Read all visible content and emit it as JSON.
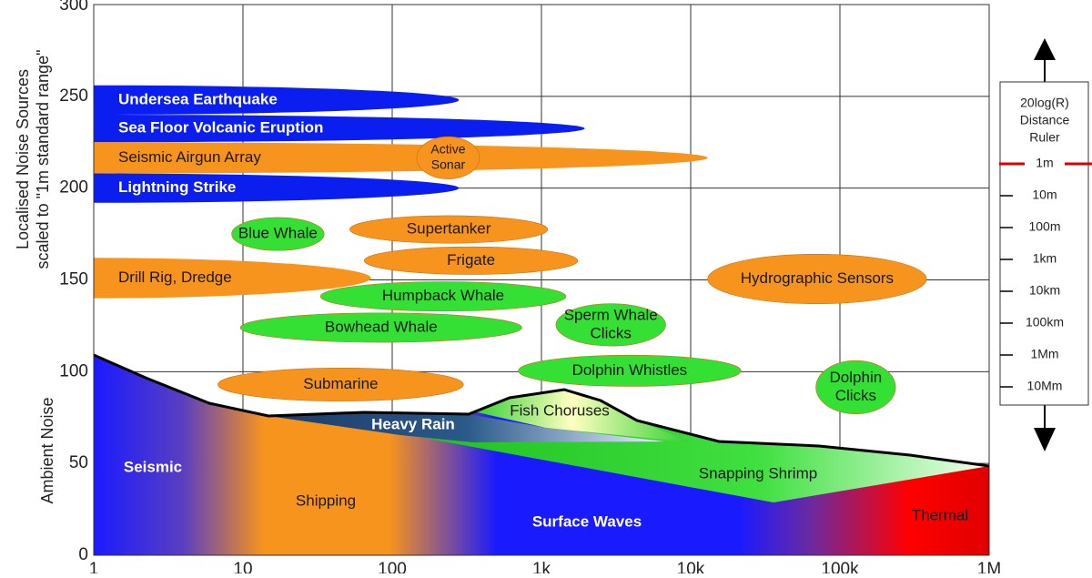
{
  "chart_data": {
    "type": "noise-map",
    "y_label_top": [
      "Localised Noise Sources",
      "scaled to \"1m standard range\""
    ],
    "y_label_bottom": "Ambient Noise",
    "xscale": "log",
    "xlim": [
      1,
      1000000
    ],
    "xticks": [
      1,
      10,
      100,
      {
        "value": 1000,
        "label": "1k"
      },
      {
        "value": 10000,
        "label": "10k"
      },
      {
        "value": 100000,
        "label": "100k"
      },
      {
        "value": 1000000,
        "label": "1M"
      }
    ],
    "ylim": [
      0,
      300
    ],
    "yticks": [
      0,
      50,
      100,
      150,
      200,
      250,
      300
    ],
    "grid": true,
    "sources": [
      {
        "lines": [
          "Undersea Earthquake"
        ],
        "color": "#0a1ef0",
        "label_color": "#ffffff",
        "x": [
          1,
          280
        ],
        "y": [
          240,
          256
        ]
      },
      {
        "lines": [
          "Sea Floor Volcanic Eruption"
        ],
        "color": "#0a1ef0",
        "label_color": "#ffffff",
        "x": [
          1,
          1950
        ],
        "y": [
          225,
          240
        ]
      },
      {
        "lines": [
          "Seismic Airgun Array"
        ],
        "color": "#f7941d",
        "label_color": "#1a1a1a",
        "x": [
          1,
          13000
        ],
        "y": [
          208,
          225
        ]
      },
      {
        "lines": [
          "Lightning Strike"
        ],
        "color": "#0a1ef0",
        "label_color": "#ffffff",
        "x": [
          1,
          280
        ],
        "y": [
          192,
          208
        ]
      },
      {
        "lines": [
          "Active",
          "Sonar"
        ],
        "color": "#f7941d",
        "label_color": "#1a1a1a",
        "x": [
          146,
          385
        ],
        "y": [
          205,
          228
        ]
      },
      {
        "lines": [
          "Blue Whale"
        ],
        "color": "#33e033",
        "label_color": "#1a1a1a",
        "x": [
          8.4,
          35
        ],
        "y": [
          166,
          184
        ]
      },
      {
        "lines": [
          "Supertanker"
        ],
        "color": "#f7941d",
        "label_color": "#1a1a1a",
        "x": [
          52,
          1100
        ],
        "y": [
          170,
          185
        ]
      },
      {
        "lines": [
          "Frigate"
        ],
        "color": "#f7941d",
        "label_color": "#1a1a1a",
        "x": [
          65,
          1750
        ],
        "y": [
          153,
          168
        ]
      },
      {
        "lines": [
          "Drill Rig, Dredge"
        ],
        "color": "#f7941d",
        "label_color": "#1a1a1a",
        "x": [
          1,
          72
        ],
        "y": [
          140,
          162
        ]
      },
      {
        "lines": [
          "Hydrographic Sensors"
        ],
        "color": "#f7941d",
        "label_color": "#1a1a1a",
        "x": [
          13000,
          380000
        ],
        "y": [
          137,
          164
        ]
      },
      {
        "lines": [
          "Humpback Whale"
        ],
        "color": "#33e033",
        "label_color": "#1a1a1a",
        "x": [
          33,
          1460
        ],
        "y": [
          133,
          149
        ]
      },
      {
        "lines": [
          "Sperm Whale",
          "Clicks"
        ],
        "color": "#33e033",
        "label_color": "#1a1a1a",
        "x": [
          1250,
          6800
        ],
        "y": [
          114,
          137
        ]
      },
      {
        "lines": [
          "Bowhead Whale"
        ],
        "color": "#33e033",
        "label_color": "#1a1a1a",
        "x": [
          9.6,
          740
        ],
        "y": [
          116,
          132
        ]
      },
      {
        "lines": [
          "Dolphin Whistles"
        ],
        "color": "#33e033",
        "label_color": "#1a1a1a",
        "x": [
          700,
          21700
        ],
        "y": [
          92,
          109
        ]
      },
      {
        "lines": [
          "Submarine"
        ],
        "color": "#f7941d",
        "label_color": "#1a1a1a",
        "x": [
          6.8,
          300
        ],
        "y": [
          84,
          102
        ]
      },
      {
        "lines": [
          "Dolphin",
          "Clicks"
        ],
        "color": "#33e033",
        "label_color": "#1a1a1a",
        "x": [
          69000,
          236000
        ],
        "y": [
          77,
          106
        ]
      }
    ],
    "ambient_labels": [
      "Seismic",
      "Shipping",
      "Surface Waves",
      "Thermal",
      "Heavy Rain",
      "Fish Choruses",
      "Snapping Shrimp"
    ],
    "ruler": {
      "title": [
        "20log(R)",
        "Distance",
        "Ruler"
      ],
      "marks": [
        "1m",
        "10m",
        "100m",
        "1km",
        "10km",
        "100km",
        "1Mm",
        "10Mm"
      ]
    }
  }
}
